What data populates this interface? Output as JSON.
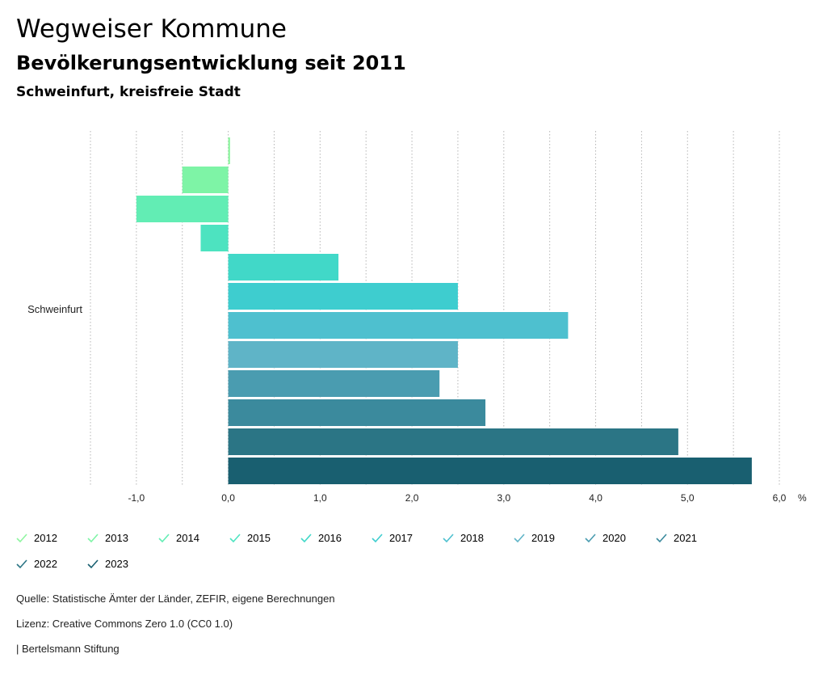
{
  "header": {
    "title": "Wegweiser Kommune",
    "subtitle": "Bevölkerungsentwicklung seit 2011",
    "region": "Schweinfurt, kreisfreie Stadt"
  },
  "chart_data": {
    "type": "bar",
    "orientation": "horizontal",
    "categories": [
      "Schweinfurt"
    ],
    "series": [
      {
        "name": "2012",
        "values": [
          0.02
        ],
        "color": "#8ef5a0"
      },
      {
        "name": "2013",
        "values": [
          -0.5
        ],
        "color": "#7ef4a6"
      },
      {
        "name": "2014",
        "values": [
          -1.0
        ],
        "color": "#62edb4"
      },
      {
        "name": "2015",
        "values": [
          -0.3
        ],
        "color": "#4de3c0"
      },
      {
        "name": "2016",
        "values": [
          1.2
        ],
        "color": "#41d8c8"
      },
      {
        "name": "2017",
        "values": [
          2.5
        ],
        "color": "#3ecdcf"
      },
      {
        "name": "2018",
        "values": [
          3.7
        ],
        "color": "#4ec0cf"
      },
      {
        "name": "2019",
        "values": [
          2.5
        ],
        "color": "#5fb4c7"
      },
      {
        "name": "2020",
        "values": [
          2.3
        ],
        "color": "#4a9cb0"
      },
      {
        "name": "2021",
        "values": [
          2.8
        ],
        "color": "#3b8a9d"
      },
      {
        "name": "2022",
        "values": [
          4.9
        ],
        "color": "#2b7585"
      },
      {
        "name": "2023",
        "values": [
          5.7
        ],
        "color": "#195f70"
      }
    ],
    "xlim": [
      -1.5,
      6.0
    ],
    "ticks": [
      -1.0,
      0.0,
      1.0,
      2.0,
      3.0,
      4.0,
      5.0,
      6.0
    ],
    "tick_labels": [
      "-1,0",
      "0,0",
      "1,0",
      "2,0",
      "3,0",
      "4,0",
      "5,0",
      "6,0"
    ],
    "unit": "%",
    "grid": true,
    "legend_position": "bottom"
  },
  "footer": {
    "source": "Quelle: Statistische Ämter der Länder, ZEFIR, eigene Berechnungen",
    "license": "Lizenz: Creative Commons Zero 1.0 (CC0 1.0)",
    "publisher": "| Bertelsmann Stiftung"
  }
}
